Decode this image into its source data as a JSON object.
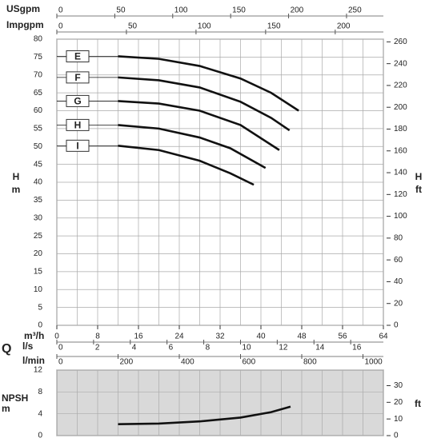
{
  "chart_data": [
    {
      "type": "line",
      "x_label": "m³/h",
      "flow_symbol": "Q",
      "xlim": [
        0,
        64
      ],
      "xticks": [
        0,
        8,
        16,
        24,
        32,
        40,
        48,
        56,
        64
      ],
      "xgrid": [
        0,
        4,
        8,
        12,
        16,
        20,
        24,
        28,
        32,
        36,
        40,
        44,
        48,
        52,
        56,
        60,
        64
      ],
      "y_label": "H",
      "y_unit": "m",
      "ylim": [
        0,
        80
      ],
      "yticks": [
        0,
        5,
        10,
        15,
        20,
        25,
        30,
        35,
        40,
        45,
        50,
        55,
        60,
        65,
        70,
        75,
        80
      ],
      "y2_label": "H",
      "y2_unit": "ft",
      "y2lim": [
        0,
        262.47
      ],
      "y2ticks": [
        0,
        20,
        40,
        60,
        80,
        100,
        120,
        140,
        160,
        180,
        200,
        220,
        240,
        260
      ],
      "flow_axes": [
        {
          "label": "USgpm",
          "lim": [
            0,
            281.8
          ],
          "ticks": [
            0,
            50,
            100,
            150,
            200,
            250
          ]
        },
        {
          "label": "Impgpm",
          "lim": [
            0,
            234.6
          ],
          "ticks": [
            0,
            50,
            100,
            150,
            200
          ]
        },
        {
          "label": "l/s",
          "lim": [
            0,
            17.78
          ],
          "ticks": [
            0,
            2,
            4,
            6,
            8,
            10,
            12,
            14,
            16
          ]
        },
        {
          "label": "l/min",
          "lim": [
            0,
            1066.7
          ],
          "ticks": [
            0,
            200,
            400,
            600,
            800,
            1000
          ]
        }
      ],
      "series": [
        {
          "name": "E",
          "color": "#111111",
          "x": [
            12,
            20,
            28,
            36,
            42,
            47.4
          ],
          "values": [
            75.2,
            74.5,
            72.5,
            69,
            65,
            60
          ]
        },
        {
          "name": "F",
          "color": "#111111",
          "x": [
            12,
            20,
            28,
            36,
            42,
            45.6
          ],
          "values": [
            69.3,
            68.5,
            66.5,
            62.5,
            58,
            54.5
          ]
        },
        {
          "name": "G",
          "color": "#111111",
          "x": [
            12,
            20,
            28,
            36,
            43.6
          ],
          "values": [
            62.7,
            62,
            60,
            56,
            49
          ]
        },
        {
          "name": "H",
          "color": "#111111",
          "x": [
            12,
            20,
            28,
            34,
            40.9
          ],
          "values": [
            56,
            55,
            52.5,
            49.5,
            44
          ]
        },
        {
          "name": "I",
          "color": "#111111",
          "x": [
            12,
            20,
            28,
            34,
            38.6
          ],
          "values": [
            50.2,
            49,
            46,
            42.5,
            39.3
          ]
        }
      ]
    },
    {
      "type": "line",
      "xlim": [
        0,
        64
      ],
      "xgrid": [
        0,
        4,
        8,
        12,
        16,
        20,
        24,
        28,
        32,
        36,
        40,
        44,
        48,
        52,
        56,
        60,
        64
      ],
      "y_label": "NPSH",
      "y_unit": "m",
      "ylim": [
        0,
        12
      ],
      "yticks": [
        0,
        4,
        8,
        12
      ],
      "y2_unit": "ft",
      "y2lim": [
        0,
        39.37
      ],
      "y2ticks": [
        0,
        10,
        20,
        30
      ],
      "series": [
        {
          "color": "#111111",
          "x": [
            12,
            20,
            28,
            36,
            42,
            45.8
          ],
          "values": [
            2.1,
            2.2,
            2.6,
            3.3,
            4.3,
            5.3
          ]
        }
      ]
    }
  ]
}
